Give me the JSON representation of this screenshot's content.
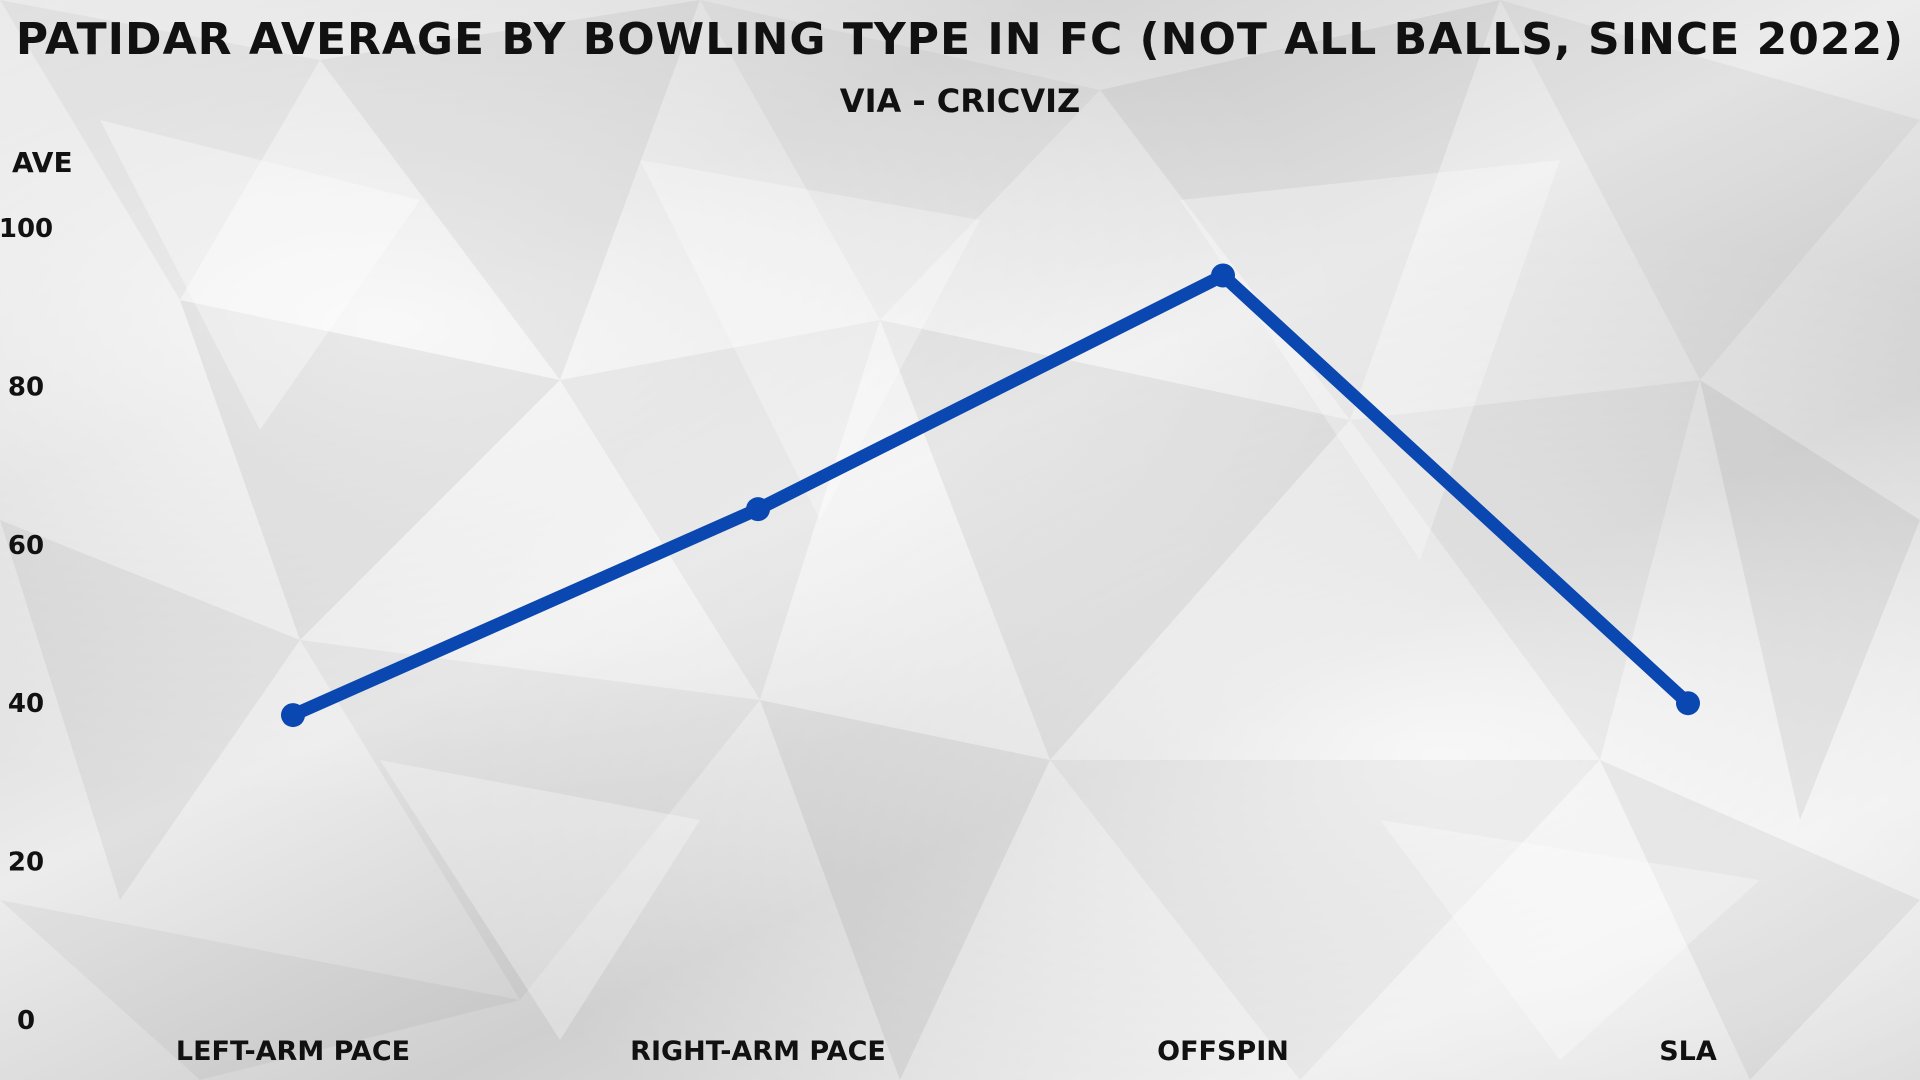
{
  "title": "PATIDAR AVERAGE BY BOWLING TYPE IN FC (NOT ALL BALLS, SINCE 2022)",
  "subtitle": "VIA - CRICVIZ",
  "chart_data": {
    "type": "line",
    "title": "PATIDAR AVERAGE BY BOWLING TYPE IN FC (NOT ALL BALLS, SINCE 2022)",
    "subtitle": "VIA - CRICVIZ",
    "xlabel": "",
    "ylabel": "AVE",
    "ylim": [
      0,
      100
    ],
    "yticks": [
      0,
      20,
      40,
      60,
      80,
      100
    ],
    "grid": false,
    "legend": "none",
    "categories": [
      "LEFT-ARM PACE",
      "RIGHT-ARM PACE",
      "OFFSPIN",
      "SLA"
    ],
    "series": [
      {
        "values": [
          38.5,
          64.5,
          94,
          40
        ],
        "color": "#0a47b0"
      }
    ]
  }
}
